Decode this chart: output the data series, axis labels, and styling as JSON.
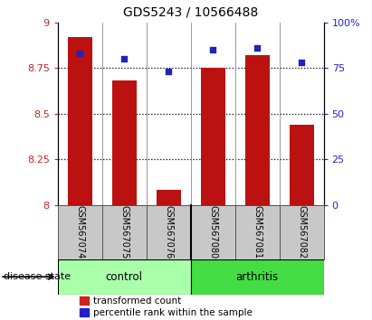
{
  "title": "GDS5243 / 10566488",
  "samples": [
    "GSM567074",
    "GSM567075",
    "GSM567076",
    "GSM567080",
    "GSM567081",
    "GSM567082"
  ],
  "red_values": [
    8.92,
    8.68,
    8.08,
    8.75,
    8.82,
    8.44
  ],
  "blue_values": [
    83,
    80,
    73,
    85,
    86,
    78
  ],
  "ylim_left": [
    8.0,
    9.0
  ],
  "ylim_right": [
    0,
    100
  ],
  "yticks_left": [
    8.0,
    8.25,
    8.5,
    8.75,
    9.0
  ],
  "yticks_right": [
    0,
    25,
    50,
    75,
    100
  ],
  "ytick_labels_left": [
    "8",
    "8.25",
    "8.5",
    "8.75",
    "9"
  ],
  "ytick_labels_right": [
    "0",
    "25",
    "50",
    "75",
    "100%"
  ],
  "bar_color": "#bb1111",
  "dot_color": "#2222bb",
  "bar_width": 0.55,
  "sample_bg_color": "#c8c8c8",
  "control_color": "#aaffaa",
  "arthritis_color": "#44dd44",
  "left_tick_color": "#cc2222",
  "right_tick_color": "#2222cc",
  "legend_labels": [
    "transformed count",
    "percentile rank within the sample"
  ],
  "legend_colors": [
    "#cc2222",
    "#2222cc"
  ],
  "hgrid_vals": [
    8.25,
    8.5,
    8.75
  ],
  "title_fontsize": 10,
  "tick_fontsize": 8,
  "sample_fontsize": 7,
  "group_fontsize": 8.5,
  "legend_fontsize": 7.5
}
